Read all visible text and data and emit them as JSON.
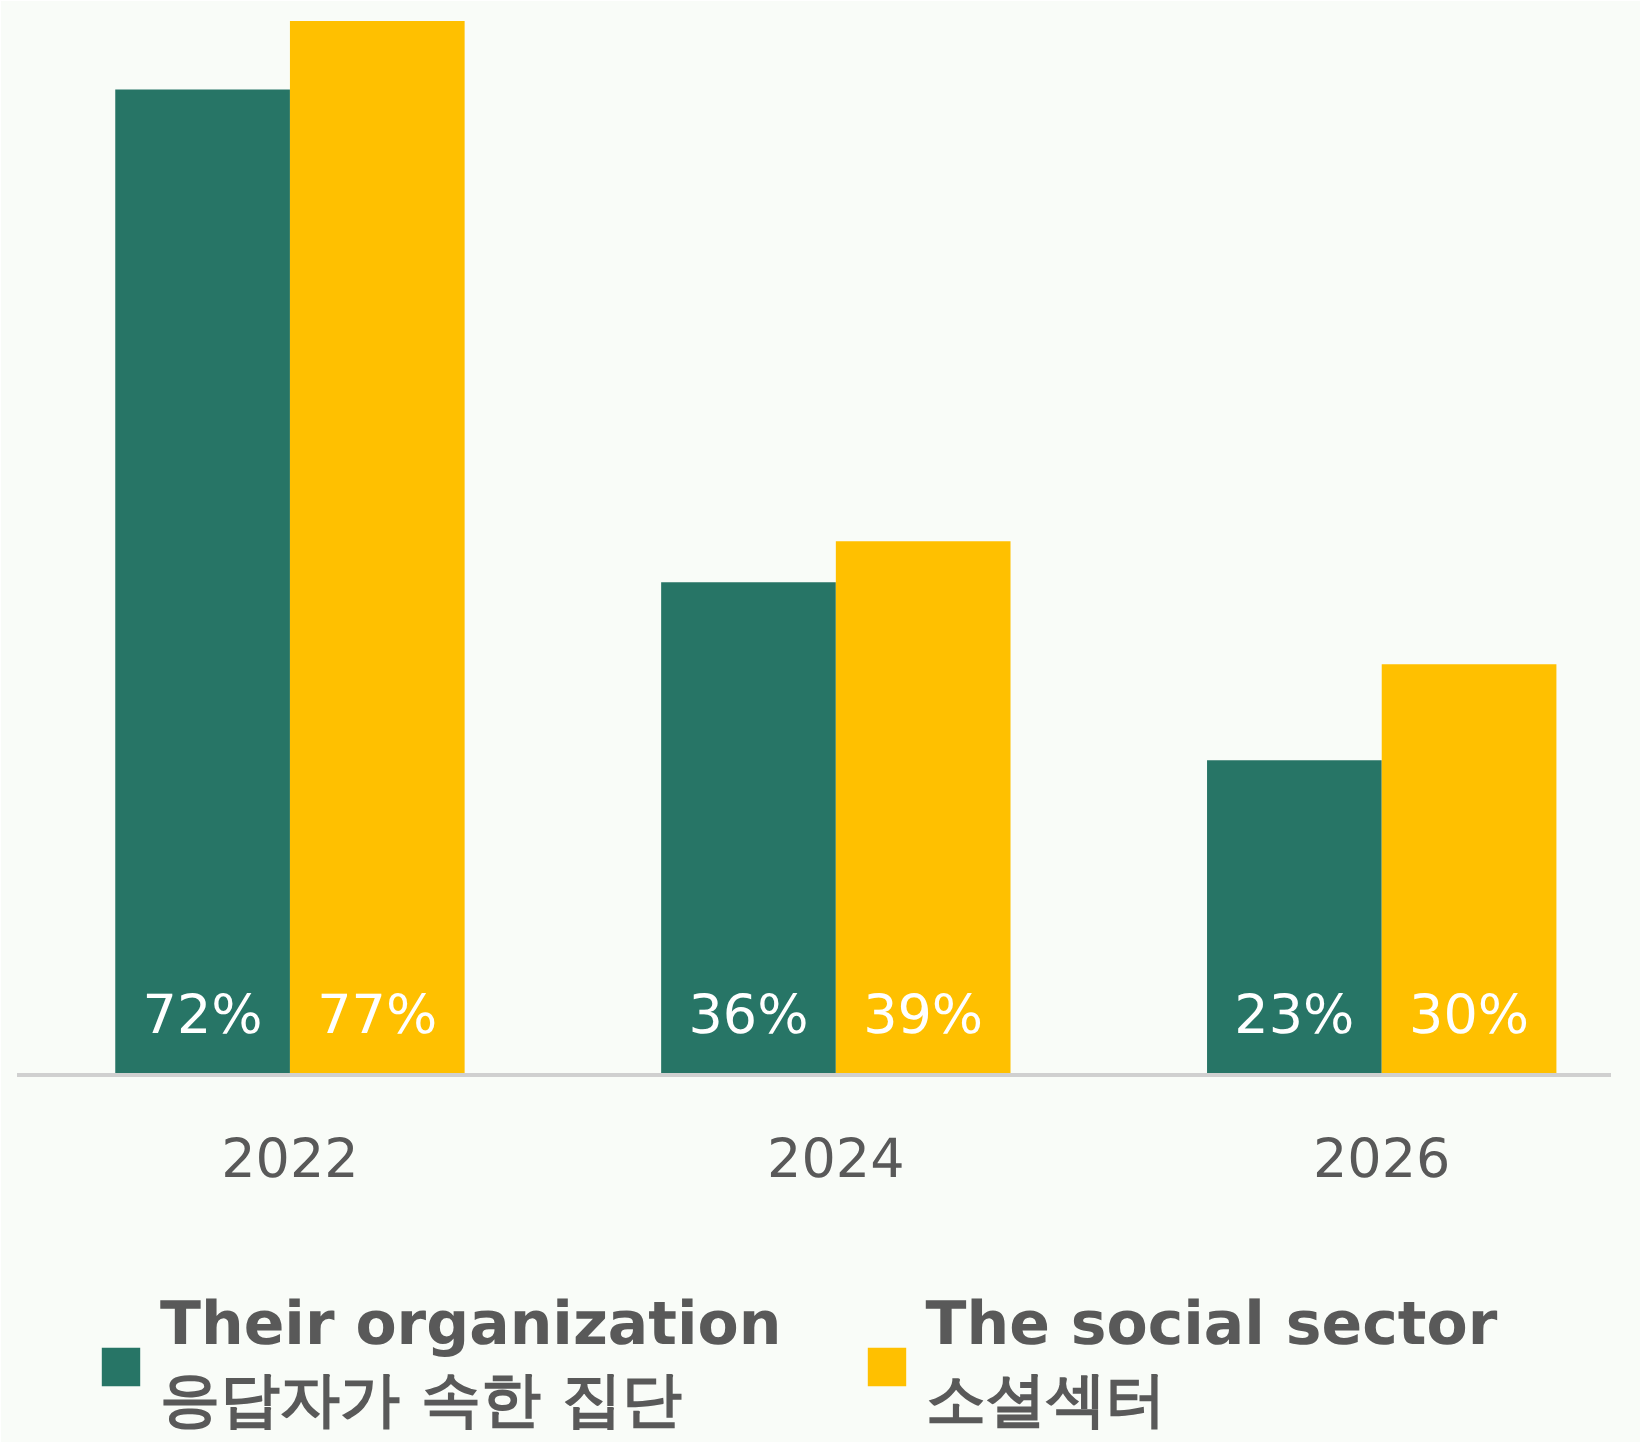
{
  "chart_data": {
    "type": "bar",
    "categories": [
      "2022",
      "2024",
      "2026"
    ],
    "series": [
      {
        "name": "Their organization\n응답자가 속한 집단",
        "color": "#277566",
        "values": [
          72,
          36,
          23
        ],
        "value_labels": [
          "72%",
          "36%",
          "23%"
        ]
      },
      {
        "name": "The social sector\n소셜섹터",
        "color": "#ffc000",
        "values": [
          77,
          39,
          30
        ],
        "value_labels": [
          "77%",
          "39%",
          "30%"
        ]
      }
    ],
    "legend": "bottom",
    "grid": false
  }
}
